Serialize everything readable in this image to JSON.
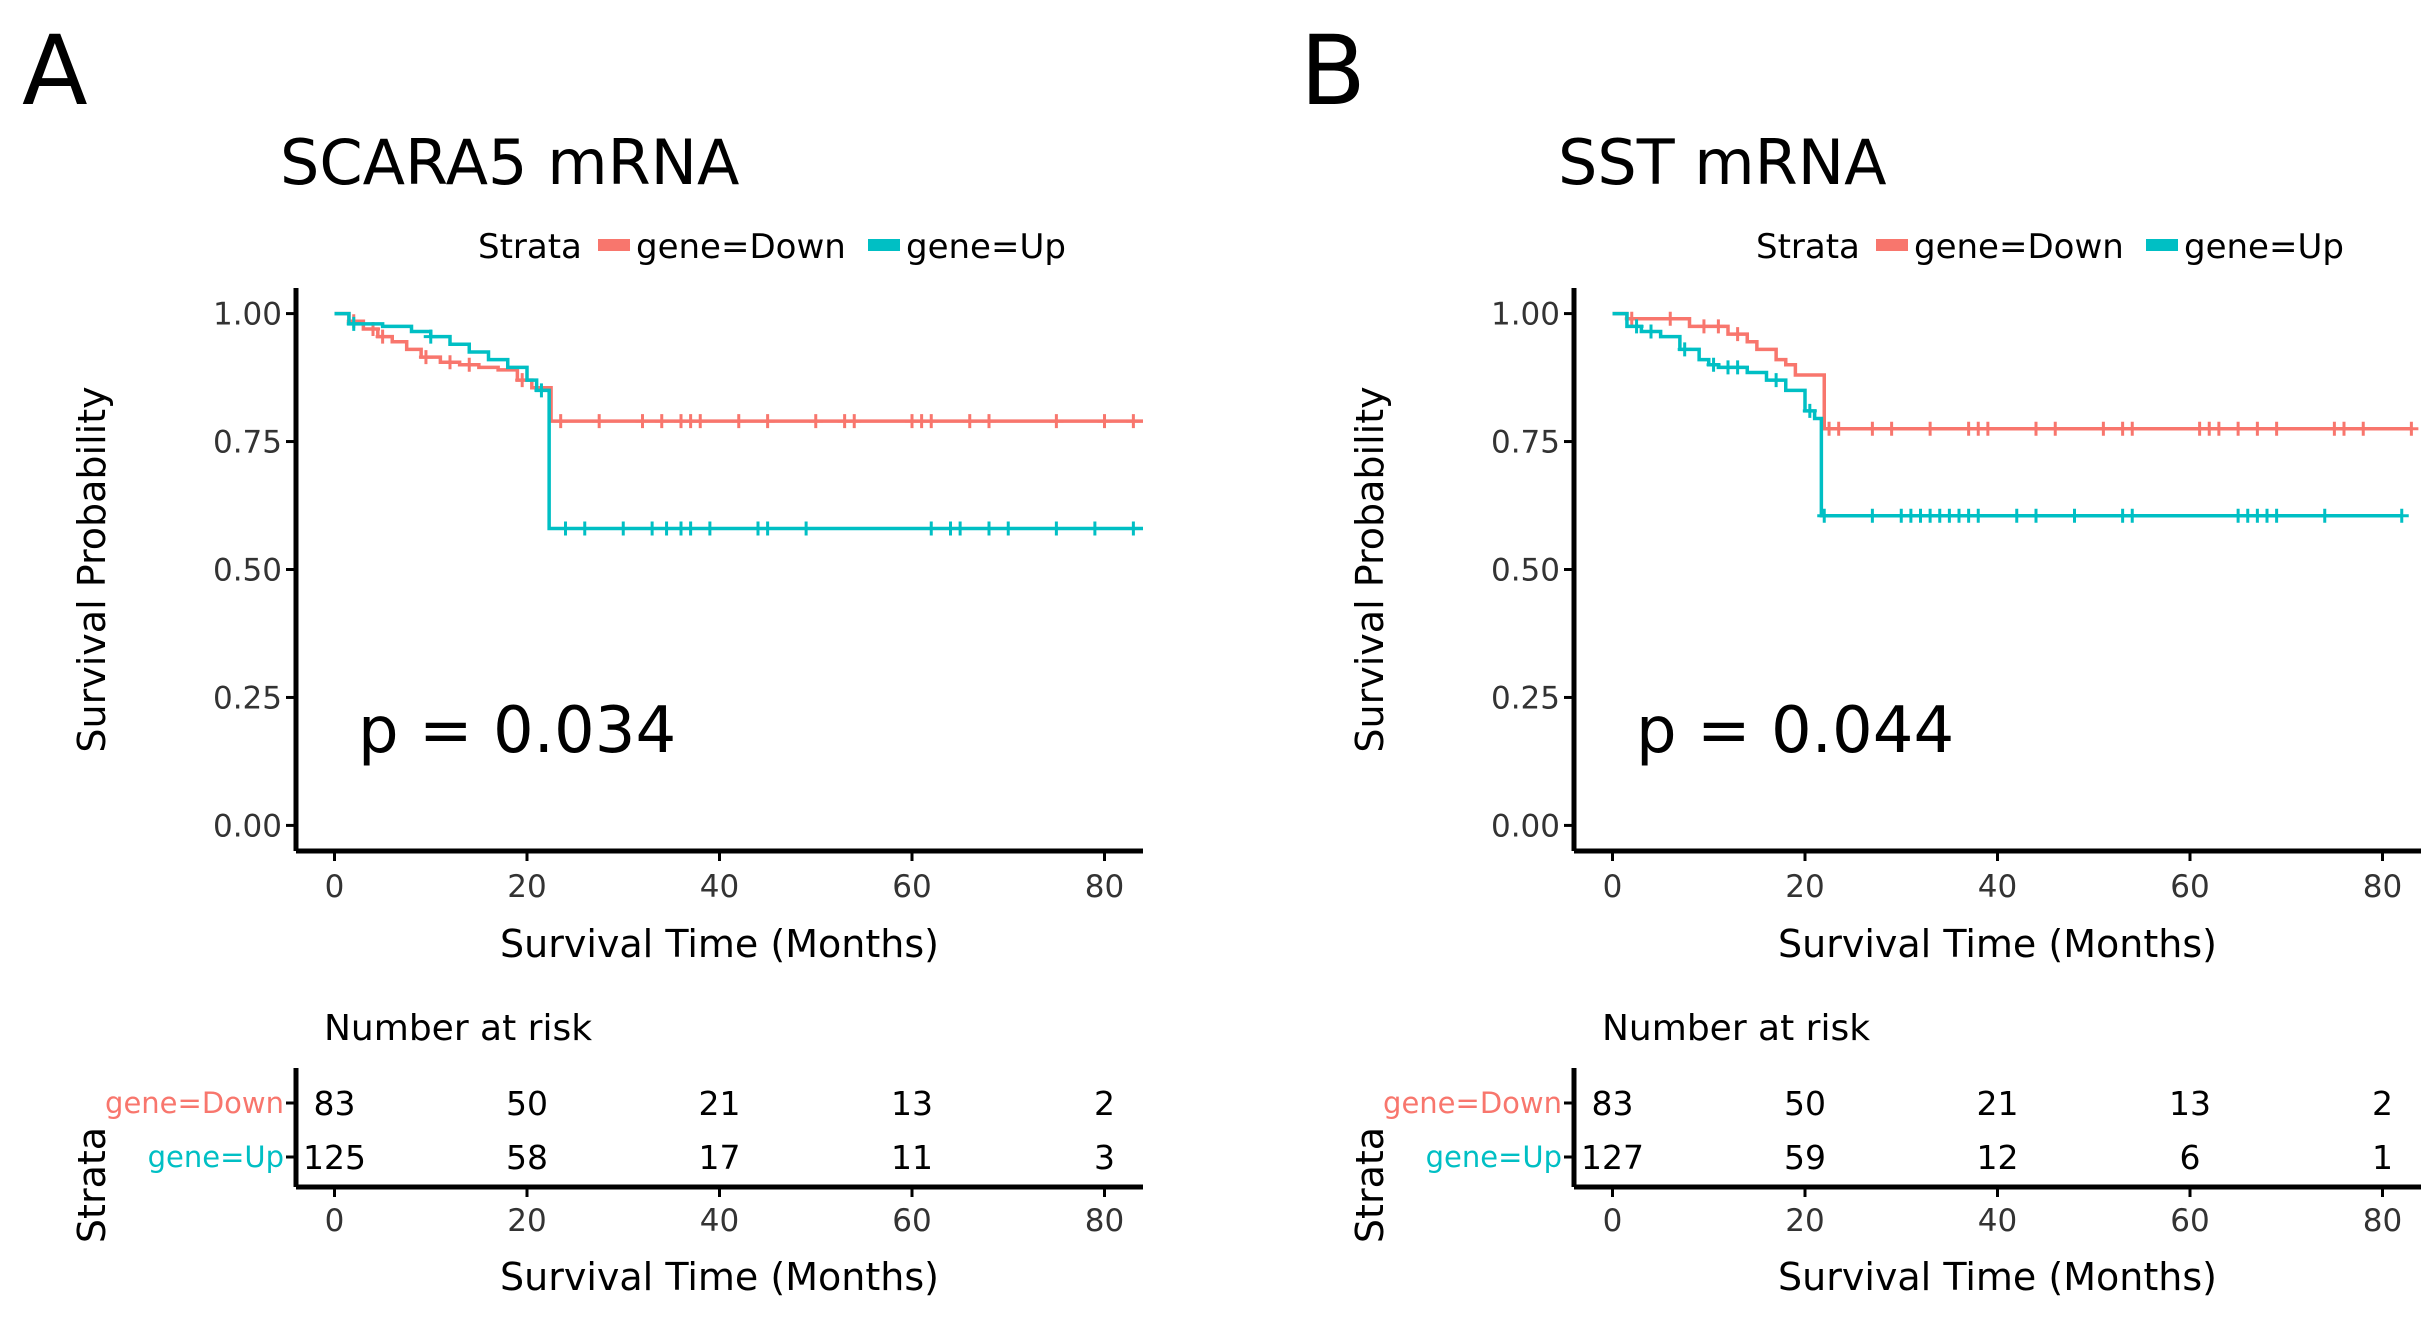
{
  "figure": {
    "panels": [
      {
        "letter": "A",
        "title": "SCARA5 mRNA"
      },
      {
        "letter": "B",
        "title": "SST mRNA"
      }
    ]
  },
  "colors": {
    "down": "#f8766d",
    "up": "#00bfc4",
    "axis": "#000000",
    "text": "#000000"
  },
  "chart_data": [
    {
      "type": "line",
      "panel": "A",
      "title": "SCARA5 mRNA",
      "xlabel": "Survival Time (Months)",
      "ylabel": "Survival Probability",
      "xlim": [
        -4,
        84
      ],
      "ylim": [
        -0.05,
        1.05
      ],
      "xticks": [
        0,
        20,
        40,
        60,
        80
      ],
      "xtick_labels": [
        "0",
        "20",
        "40",
        "60",
        "80"
      ],
      "yticks": [
        0,
        0.25,
        0.5,
        0.75,
        1.0
      ],
      "ytick_labels": [
        "0.00",
        "0.25",
        "0.50",
        "0.75",
        "1.00"
      ],
      "legend": {
        "title": "Strata",
        "position": "top",
        "labels": [
          "gene=Down",
          "gene=Up"
        ]
      },
      "annotation": "p = 0.034",
      "series": [
        {
          "name": "gene=Down",
          "steps": [
            [
              0,
              1.0
            ],
            [
              1.5,
              0.985
            ],
            [
              3,
              0.97
            ],
            [
              4.5,
              0.955
            ],
            [
              6,
              0.945
            ],
            [
              7.5,
              0.93
            ],
            [
              9,
              0.915
            ],
            [
              11,
              0.905
            ],
            [
              13,
              0.9
            ],
            [
              15,
              0.895
            ],
            [
              17,
              0.89
            ],
            [
              19,
              0.87
            ],
            [
              20.5,
              0.855
            ],
            [
              22.5,
              0.79
            ],
            [
              84,
              0.79
            ]
          ],
          "censors": [
            [
              2,
              0.985
            ],
            [
              4,
              0.97
            ],
            [
              5,
              0.955
            ],
            [
              9.5,
              0.915
            ],
            [
              12,
              0.905
            ],
            [
              14,
              0.9
            ],
            [
              19.5,
              0.87
            ],
            [
              23.5,
              0.79
            ],
            [
              27.5,
              0.79
            ],
            [
              32,
              0.79
            ],
            [
              34,
              0.79
            ],
            [
              36,
              0.79
            ],
            [
              37,
              0.79
            ],
            [
              38,
              0.79
            ],
            [
              42,
              0.79
            ],
            [
              45,
              0.79
            ],
            [
              50,
              0.79
            ],
            [
              53,
              0.79
            ],
            [
              54,
              0.79
            ],
            [
              60,
              0.79
            ],
            [
              61,
              0.79
            ],
            [
              62,
              0.79
            ],
            [
              66,
              0.79
            ],
            [
              68,
              0.79
            ],
            [
              75,
              0.79
            ],
            [
              80,
              0.79
            ],
            [
              83,
              0.79
            ]
          ]
        },
        {
          "name": "gene=Up",
          "steps": [
            [
              0,
              1.0
            ],
            [
              1.5,
              0.98
            ],
            [
              5,
              0.975
            ],
            [
              8,
              0.965
            ],
            [
              10,
              0.955
            ],
            [
              12,
              0.94
            ],
            [
              14,
              0.925
            ],
            [
              16,
              0.91
            ],
            [
              18,
              0.895
            ],
            [
              20,
              0.87
            ],
            [
              21,
              0.85
            ],
            [
              22.3,
              0.58
            ],
            [
              84,
              0.58
            ]
          ],
          "censors": [
            [
              2,
              0.98
            ],
            [
              10,
              0.955
            ],
            [
              21.5,
              0.85
            ],
            [
              24,
              0.58
            ],
            [
              26,
              0.58
            ],
            [
              30,
              0.58
            ],
            [
              33,
              0.58
            ],
            [
              34.5,
              0.58
            ],
            [
              36,
              0.58
            ],
            [
              37,
              0.58
            ],
            [
              39,
              0.58
            ],
            [
              44,
              0.58
            ],
            [
              45,
              0.58
            ],
            [
              49,
              0.58
            ],
            [
              62,
              0.58
            ],
            [
              64,
              0.58
            ],
            [
              65,
              0.58
            ],
            [
              68,
              0.58
            ],
            [
              70,
              0.58
            ],
            [
              75,
              0.58
            ],
            [
              79,
              0.58
            ],
            [
              83,
              0.58
            ]
          ]
        }
      ],
      "risk_table": {
        "title": "Number at risk",
        "ylabel": "Strata",
        "xlabel": "Survival Time (Months)",
        "times": [
          0,
          20,
          40,
          60,
          80
        ],
        "rows": [
          {
            "label": "gene=Down",
            "values": [
              "83",
              "50",
              "21",
              "13",
              "2"
            ]
          },
          {
            "label": "gene=Up",
            "values": [
              "125",
              "58",
              "17",
              "11",
              "3"
            ]
          }
        ]
      }
    },
    {
      "type": "line",
      "panel": "B",
      "title": "SST mRNA",
      "xlabel": "Survival Time (Months)",
      "ylabel": "Survival Probability",
      "xlim": [
        -4,
        84
      ],
      "ylim": [
        -0.05,
        1.05
      ],
      "xticks": [
        0,
        20,
        40,
        60,
        80
      ],
      "xtick_labels": [
        "0",
        "20",
        "40",
        "60",
        "80"
      ],
      "yticks": [
        0,
        0.25,
        0.5,
        0.75,
        1.0
      ],
      "ytick_labels": [
        "0.00",
        "0.25",
        "0.50",
        "0.75",
        "1.00"
      ],
      "legend": {
        "title": "Strata",
        "position": "top",
        "labels": [
          "gene=Down",
          "gene=Up"
        ]
      },
      "annotation": "p = 0.044",
      "series": [
        {
          "name": "gene=Down",
          "steps": [
            [
              0,
              1.0
            ],
            [
              1.5,
              0.99
            ],
            [
              8,
              0.975
            ],
            [
              12,
              0.96
            ],
            [
              14,
              0.945
            ],
            [
              15,
              0.93
            ],
            [
              17,
              0.91
            ],
            [
              18,
              0.9
            ],
            [
              19,
              0.88
            ],
            [
              22,
              0.775
            ],
            [
              83,
              0.775
            ]
          ],
          "censors": [
            [
              2,
              0.99
            ],
            [
              6,
              0.99
            ],
            [
              9.5,
              0.975
            ],
            [
              11,
              0.975
            ],
            [
              13,
              0.96
            ],
            [
              22.5,
              0.775
            ],
            [
              23.5,
              0.775
            ],
            [
              27,
              0.775
            ],
            [
              29,
              0.775
            ],
            [
              33,
              0.775
            ],
            [
              37,
              0.775
            ],
            [
              38,
              0.775
            ],
            [
              39,
              0.775
            ],
            [
              44,
              0.775
            ],
            [
              46,
              0.775
            ],
            [
              51,
              0.775
            ],
            [
              53,
              0.775
            ],
            [
              54,
              0.775
            ],
            [
              61,
              0.775
            ],
            [
              62,
              0.775
            ],
            [
              63,
              0.775
            ],
            [
              65,
              0.775
            ],
            [
              67,
              0.775
            ],
            [
              69,
              0.775
            ],
            [
              75,
              0.775
            ],
            [
              76,
              0.775
            ],
            [
              78,
              0.775
            ],
            [
              83,
              0.775
            ]
          ]
        },
        {
          "name": "gene=Up",
          "steps": [
            [
              0,
              1.0
            ],
            [
              1.5,
              0.975
            ],
            [
              3,
              0.965
            ],
            [
              5,
              0.955
            ],
            [
              7,
              0.93
            ],
            [
              9,
              0.91
            ],
            [
              10,
              0.9
            ],
            [
              11,
              0.895
            ],
            [
              14,
              0.885
            ],
            [
              16,
              0.87
            ],
            [
              18,
              0.85
            ],
            [
              20,
              0.81
            ],
            [
              21,
              0.795
            ],
            [
              21.7,
              0.605
            ],
            [
              82,
              0.605
            ]
          ],
          "censors": [
            [
              2.5,
              0.975
            ],
            [
              4,
              0.965
            ],
            [
              7.5,
              0.93
            ],
            [
              10.5,
              0.9
            ],
            [
              12,
              0.895
            ],
            [
              13,
              0.895
            ],
            [
              17,
              0.87
            ],
            [
              20.5,
              0.81
            ],
            [
              22,
              0.605
            ],
            [
              27,
              0.605
            ],
            [
              30,
              0.605
            ],
            [
              31,
              0.605
            ],
            [
              32,
              0.605
            ],
            [
              33,
              0.605
            ],
            [
              34,
              0.605
            ],
            [
              35,
              0.605
            ],
            [
              36,
              0.605
            ],
            [
              37,
              0.605
            ],
            [
              38,
              0.605
            ],
            [
              42,
              0.605
            ],
            [
              44,
              0.605
            ],
            [
              48,
              0.605
            ],
            [
              53,
              0.605
            ],
            [
              54,
              0.605
            ],
            [
              65,
              0.605
            ],
            [
              66,
              0.605
            ],
            [
              67,
              0.605
            ],
            [
              68,
              0.605
            ],
            [
              69,
              0.605
            ],
            [
              74,
              0.605
            ],
            [
              82,
              0.605
            ]
          ]
        }
      ],
      "risk_table": {
        "title": "Number at risk",
        "ylabel": "Strata",
        "xlabel": "Survival Time (Months)",
        "times": [
          0,
          20,
          40,
          60,
          80
        ],
        "rows": [
          {
            "label": "gene=Down",
            "values": [
              "83",
              "50",
              "21",
              "13",
              "2"
            ]
          },
          {
            "label": "gene=Up",
            "values": [
              "127",
              "59",
              "12",
              "6",
              "1"
            ]
          }
        ]
      }
    }
  ]
}
